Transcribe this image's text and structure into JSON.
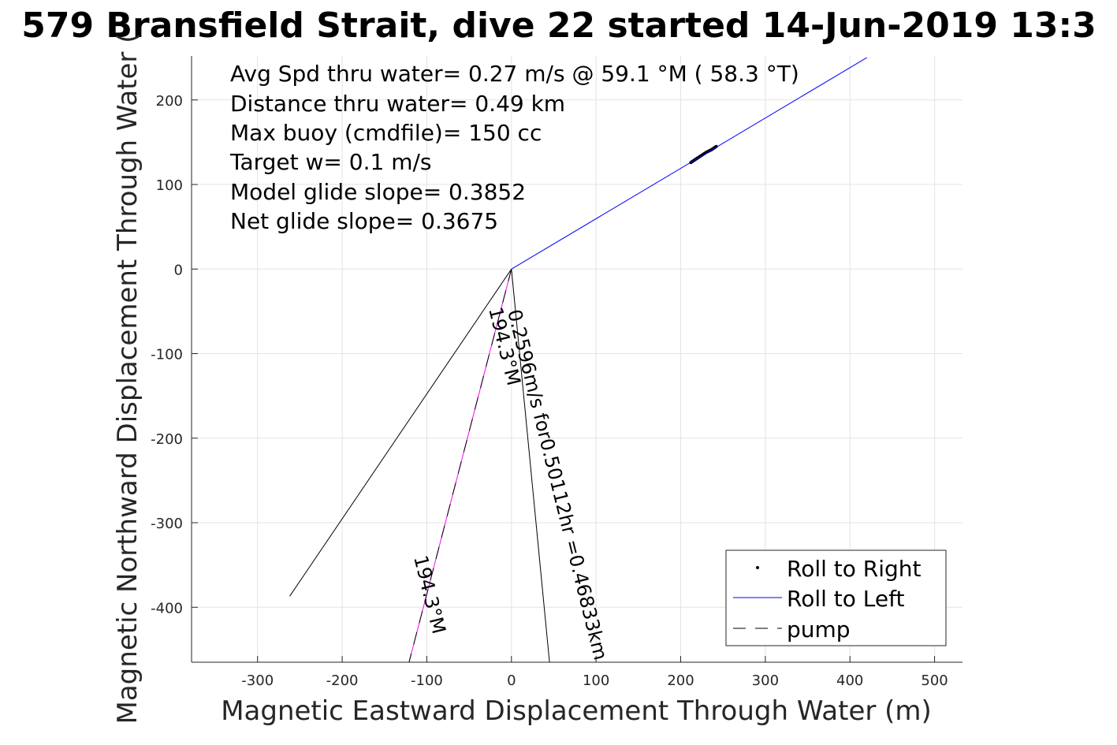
{
  "chart_data": {
    "type": "line",
    "title": "579 Bransfield Strait, dive 22 started 14-Jun-2019 13:3",
    "xlabel": "Magnetic Eastward Displacement Through Water (m)",
    "ylabel": "Magnetic Northward Displacement Through Water (",
    "xlim": [
      -378,
      533
    ],
    "ylim": [
      -465,
      252
    ],
    "xticks": [
      -300,
      -200,
      -100,
      0,
      100,
      200,
      300,
      400,
      500
    ],
    "xtick_labels": [
      "-300",
      "-200",
      "-100",
      "0",
      "100",
      "200",
      "300",
      "400",
      "500"
    ],
    "yticks": [
      -400,
      -300,
      -200,
      -100,
      0,
      100,
      200
    ],
    "ytick_labels": [
      "-400",
      "-300",
      "-200",
      "-100",
      "0",
      "100",
      "200"
    ],
    "grid": true,
    "annotations": [
      "Avg Spd thru water=  0.27 m/s @  59.1 °M ( 58.3 °T)",
      "Distance thru water=  0.49 km",
      "Max buoy (cmdfile)= 150 cc",
      "Target w= 0.1 m/s",
      "Model glide slope= 0.3852",
      "Net glide slope= 0.3675"
    ],
    "track_labels": [
      "0.2596m/s for0.50112hr =0.46833km",
      "194.3°M",
      "194.3°M"
    ],
    "legend_position": "bottom-right",
    "series": [
      {
        "name": "Roll to Right",
        "style": "point",
        "color": "#000000",
        "x": [
          212,
          218,
          224,
          230,
          236,
          242
        ],
        "y": [
          126,
          130,
          134,
          138,
          141,
          145
        ]
      },
      {
        "name": "Roll to Left",
        "style": "line",
        "color": "#0000ff",
        "x": [
          0,
          420
        ],
        "y": [
          0,
          250
        ]
      },
      {
        "name": "pump",
        "style": "dashed",
        "color": "#000000",
        "x": [
          0,
          -121
        ],
        "y": [
          0,
          -465
        ]
      }
    ],
    "other_lines": [
      {
        "color": "#000000",
        "style": "solid",
        "x": [
          0,
          -262
        ],
        "y": [
          0,
          -387
        ]
      },
      {
        "color": "#000000",
        "style": "solid",
        "x": [
          0,
          45
        ],
        "y": [
          0,
          -465
        ]
      },
      {
        "color": "#ff00ff",
        "style": "solid",
        "x": [
          0,
          -121
        ],
        "y": [
          0,
          -465
        ]
      }
    ]
  }
}
